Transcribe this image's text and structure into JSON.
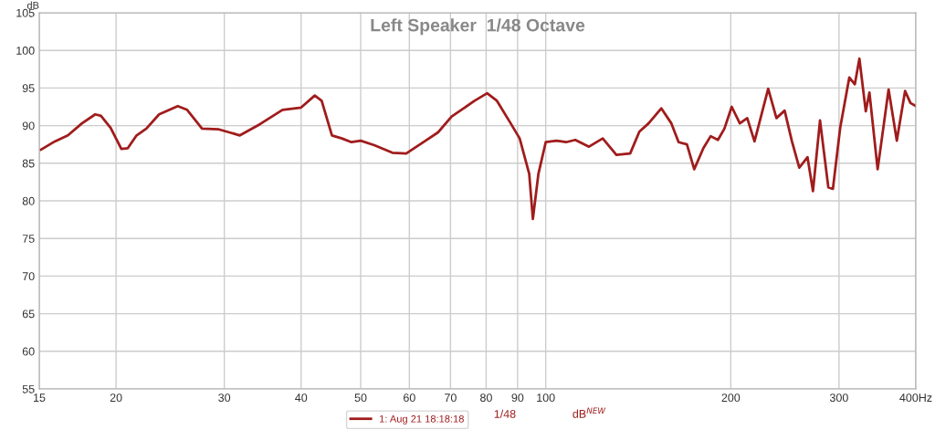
{
  "chart_data": {
    "type": "line",
    "title": "Left Speaker  1/48 Octave",
    "ylabel": "dB",
    "x": [
      15.1,
      15.9,
      16.7,
      17.6,
      18.5,
      18.9,
      19.6,
      20.4,
      20.9,
      21.6,
      22.4,
      23.5,
      25.2,
      26.1,
      27.6,
      29.4,
      31.8,
      34.3,
      37.3,
      40.0,
      42.1,
      43.2,
      44.9,
      46.6,
      48.3,
      50.0,
      52.6,
      56.3,
      59.3,
      63.5,
      66.8,
      70.3,
      76.6,
      80.3,
      83.3,
      87.7,
      90.7,
      94.0,
      95.3,
      97.3,
      100.0,
      104.2,
      107.9,
      111.7,
      117.6,
      123.8,
      130.3,
      137.2,
      142.0,
      147.0,
      154.2,
      160.1,
      164.5,
      169.7,
      174.4,
      180.5,
      185.5,
      190.6,
      195.3,
      200.7,
      206.9,
      212.7,
      218.6,
      230.1,
      237.3,
      244.7,
      251.5,
      258.5,
      266.6,
      272.1,
      279.4,
      288.2,
      293.2,
      301.3,
      311.8,
      318.3,
      323.8,
      331.6,
      336.2,
      346.7,
      361.2,
      372.5,
      384.2,
      392.1,
      400
    ],
    "series": [
      {
        "name": "1: Aug 21 18:18:18",
        "color": "#a01c1c",
        "values": [
          86.8,
          87.9,
          88.7,
          90.3,
          91.5,
          91.3,
          89.7,
          86.9,
          87.0,
          88.7,
          89.6,
          91.5,
          92.6,
          92.1,
          89.6,
          89.5,
          88.7,
          90.2,
          92.1,
          92.4,
          94.0,
          93.3,
          88.7,
          88.3,
          87.8,
          88.0,
          87.4,
          86.4,
          86.3,
          87.9,
          89.1,
          91.2,
          93.3,
          94.3,
          93.3,
          90.3,
          88.3,
          83.6,
          77.6,
          83.6,
          87.8,
          88.0,
          87.8,
          88.1,
          87.2,
          88.3,
          86.1,
          86.3,
          89.2,
          90.3,
          92.3,
          90.3,
          87.8,
          87.5,
          84.2,
          87.0,
          88.6,
          88.1,
          89.6,
          92.5,
          90.3,
          91.0,
          87.9,
          94.9,
          91.0,
          92.0,
          87.9,
          84.4,
          85.8,
          81.3,
          90.7,
          81.8,
          81.6,
          89.7,
          96.4,
          95.5,
          98.9,
          91.9,
          94.4,
          84.2,
          94.8,
          88.0,
          94.6,
          93.0,
          92.6
        ]
      }
    ],
    "log": "x",
    "xlim": [
      15,
      400
    ],
    "xticks": [
      15,
      20,
      30,
      40,
      50,
      60,
      70,
      80,
      90,
      100,
      200,
      300,
      {
        "value": 400,
        "label": "400Hz"
      }
    ],
    "ylim": [
      55,
      105
    ],
    "yticks": [
      55,
      60,
      65,
      70,
      75,
      80,
      85,
      90,
      95,
      100,
      105
    ],
    "grid": true,
    "legend": "bottom",
    "marker": "none",
    "line_style": "solid",
    "annotations": [
      "1/48",
      "dB$^{NEW}$"
    ]
  }
}
